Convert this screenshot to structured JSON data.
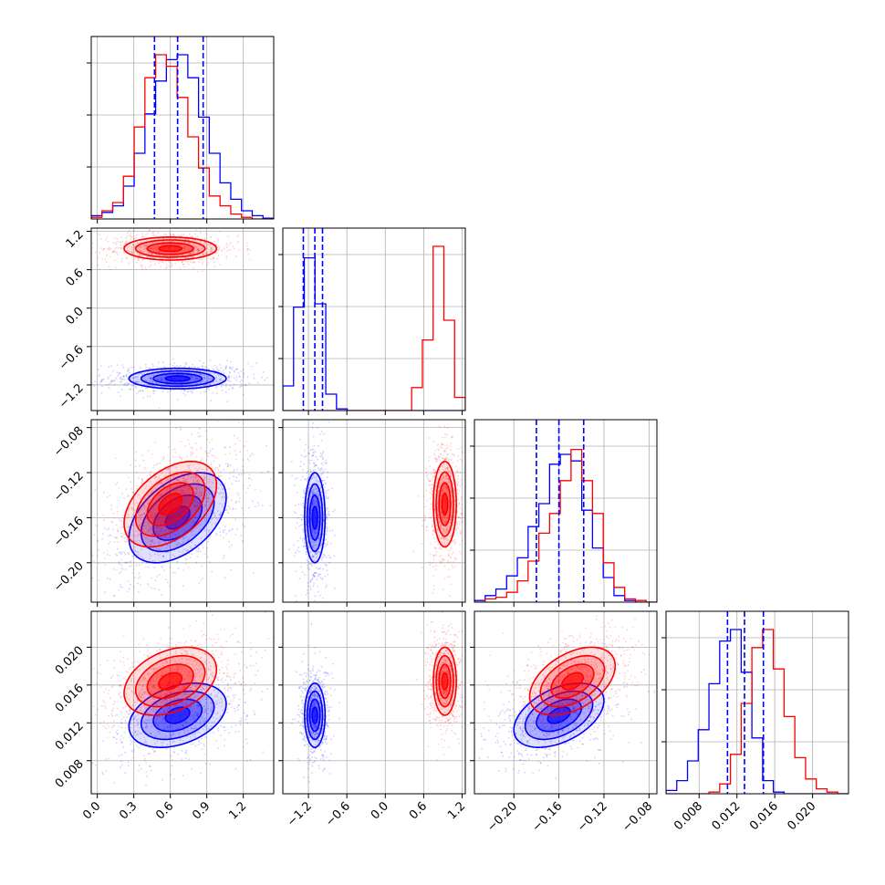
{
  "chart_data": {
    "type": "corner",
    "grid": true,
    "colors": {
      "set_a": "#0000ff",
      "set_b": "#ff0000"
    },
    "parameters": [
      {
        "range": [
          -0.05,
          1.45
        ],
        "ticks": [
          0.0,
          0.3,
          0.6,
          0.9,
          1.2
        ],
        "tick_labels": [
          "0.0",
          "0.3",
          "0.6",
          "0.9",
          "1.2"
        ]
      },
      {
        "range": [
          -1.6,
          1.25
        ],
        "ticks": [
          -1.2,
          -0.6,
          0.0,
          0.6,
          1.2
        ],
        "tick_labels": [
          "−1.2",
          "−0.6",
          "0.0",
          "0.6",
          "1.2"
        ]
      },
      {
        "range": [
          -0.235,
          -0.073
        ],
        "ticks": [
          -0.2,
          -0.16,
          -0.12,
          -0.08
        ],
        "tick_labels": [
          "−0.20",
          "−0.16",
          "−0.12",
          "−0.08"
        ]
      },
      {
        "range": [
          0.0045,
          0.0238
        ],
        "ticks": [
          0.008,
          0.012,
          0.016,
          0.02
        ],
        "tick_labels": [
          "0.008",
          "0.012",
          "0.016",
          "0.020"
        ]
      }
    ],
    "series": [
      {
        "color": "#0000ff",
        "means": [
          0.66,
          -1.1,
          -0.16,
          0.0128
        ],
        "sds": [
          0.2,
          0.08,
          0.02,
          0.0017
        ],
        "quantiles": [
          [
            0.47,
            0.66,
            0.87
          ],
          [
            -1.28,
            -1.1,
            -0.98
          ],
          [
            -0.18,
            -0.16,
            -0.138
          ],
          [
            0.011,
            0.0128,
            0.0148
          ]
        ],
        "histograms": [
          [
            0.02,
            0.04,
            0.08,
            0.2,
            0.4,
            0.64,
            0.84,
            0.97,
            1.0,
            0.86,
            0.62,
            0.4,
            0.22,
            0.12,
            0.05,
            0.02,
            0.005
          ],
          [
            0.15,
            0.63,
            0.93,
            0.65,
            0.1,
            0.01,
            0,
            0,
            0,
            0,
            0,
            0,
            0,
            0,
            0,
            0,
            0
          ],
          [
            0.01,
            0.04,
            0.08,
            0.16,
            0.27,
            0.46,
            0.6,
            0.84,
            0.9,
            0.86,
            0.56,
            0.33,
            0.15,
            0.04,
            0.01,
            0.0,
            0.0
          ],
          [
            0.02,
            0.08,
            0.2,
            0.39,
            0.67,
            0.93,
            1.0,
            0.74,
            0.34,
            0.08,
            0.01,
            0,
            0,
            0,
            0,
            0,
            0
          ]
        ]
      },
      {
        "color": "#ff0000",
        "means": [
          0.6,
          0.93,
          -0.148,
          0.0164
        ],
        "sds": [
          0.19,
          0.09,
          0.019,
          0.0018
        ],
        "quantiles": [],
        "histograms": [
          [
            0.01,
            0.05,
            0.1,
            0.26,
            0.56,
            0.86,
            1.0,
            0.93,
            0.74,
            0.5,
            0.31,
            0.14,
            0.08,
            0.03,
            0.01,
            0.0,
            0.0
          ],
          [
            0,
            0,
            0,
            0,
            0,
            0,
            0,
            0,
            0,
            0,
            0,
            0,
            0.14,
            0.43,
            1.0,
            0.55,
            0.08
          ],
          [
            0.0,
            0.02,
            0.03,
            0.06,
            0.13,
            0.25,
            0.42,
            0.54,
            0.74,
            0.93,
            0.74,
            0.54,
            0.24,
            0.09,
            0.02,
            0.01,
            0.0
          ],
          [
            0,
            0,
            0,
            0,
            0.01,
            0.06,
            0.24,
            0.55,
            0.89,
            1.0,
            0.76,
            0.47,
            0.22,
            0.09,
            0.03,
            0.01,
            0.0
          ]
        ]
      }
    ],
    "correlations": {
      "0-1": 0.0,
      "0-2": 0.45,
      "0-3": 0.35,
      "1-2": 0.0,
      "1-3": 0.0,
      "2-3": 0.45
    }
  }
}
